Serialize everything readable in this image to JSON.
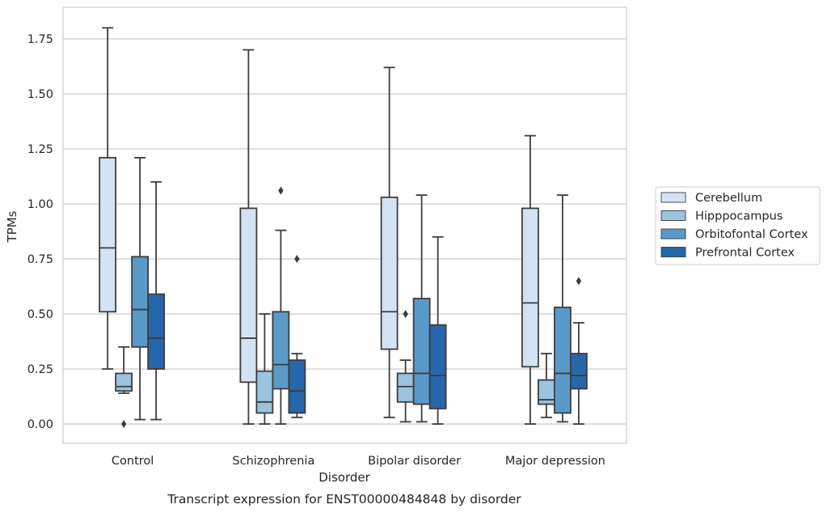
{
  "chart_data": {
    "type": "box",
    "caption": "Transcript expression for ENST00000484848 by disorder",
    "xlabel": "Disorder",
    "ylabel": "TPMs",
    "ylim": [
      -0.09,
      1.89
    ],
    "yticks": [
      "0.00",
      "0.25",
      "0.50",
      "0.75",
      "1.00",
      "1.25",
      "1.50",
      "1.75"
    ],
    "ytick_values": [
      0,
      0.25,
      0.5,
      0.75,
      1.0,
      1.25,
      1.5,
      1.75
    ],
    "grid": "horizontal",
    "legend_position": "right",
    "categories": [
      "Control",
      "Schizophrenia",
      "Bipolar disorder",
      "Major depression"
    ],
    "series": [
      {
        "name": "Cerebellum",
        "color": "#d4e3f3",
        "boxes": [
          {
            "whislo": 0.25,
            "q1": 0.51,
            "med": 0.8,
            "q3": 1.21,
            "whishi": 1.8,
            "fliers": []
          },
          {
            "whislo": 0.0,
            "q1": 0.19,
            "med": 0.39,
            "q3": 0.98,
            "whishi": 1.7,
            "fliers": []
          },
          {
            "whislo": 0.03,
            "q1": 0.34,
            "med": 0.51,
            "q3": 1.03,
            "whishi": 1.62,
            "fliers": []
          },
          {
            "whislo": 0.0,
            "q1": 0.26,
            "med": 0.55,
            "q3": 0.98,
            "whishi": 1.31,
            "fliers": []
          }
        ]
      },
      {
        "name": "Hipppocampus",
        "color": "#9ac4df",
        "boxes": [
          {
            "whislo": 0.14,
            "q1": 0.15,
            "med": 0.17,
            "q3": 0.23,
            "whishi": 0.35,
            "fliers": [
              0.0
            ]
          },
          {
            "whislo": 0.0,
            "q1": 0.05,
            "med": 0.1,
            "q3": 0.24,
            "whishi": 0.5,
            "fliers": []
          },
          {
            "whislo": 0.01,
            "q1": 0.1,
            "med": 0.17,
            "q3": 0.23,
            "whishi": 0.29,
            "fliers": [
              0.5
            ]
          },
          {
            "whislo": 0.03,
            "q1": 0.09,
            "med": 0.11,
            "q3": 0.2,
            "whishi": 0.32,
            "fliers": []
          }
        ]
      },
      {
        "name": "Orbitofontal Cortex",
        "color": "#5a9ac9",
        "boxes": [
          {
            "whislo": 0.02,
            "q1": 0.35,
            "med": 0.52,
            "q3": 0.76,
            "whishi": 1.21,
            "fliers": []
          },
          {
            "whislo": 0.0,
            "q1": 0.16,
            "med": 0.27,
            "q3": 0.51,
            "whishi": 0.88,
            "fliers": [
              1.06
            ]
          },
          {
            "whislo": 0.01,
            "q1": 0.09,
            "med": 0.23,
            "q3": 0.57,
            "whishi": 1.04,
            "fliers": []
          },
          {
            "whislo": 0.01,
            "q1": 0.05,
            "med": 0.23,
            "q3": 0.53,
            "whishi": 1.04,
            "fliers": []
          }
        ]
      },
      {
        "name": "Prefrontal Cortex",
        "color": "#2766ab",
        "boxes": [
          {
            "whislo": 0.02,
            "q1": 0.25,
            "med": 0.39,
            "q3": 0.59,
            "whishi": 1.1,
            "fliers": []
          },
          {
            "whislo": 0.03,
            "q1": 0.05,
            "med": 0.15,
            "q3": 0.29,
            "whishi": 0.32,
            "fliers": [
              0.75
            ]
          },
          {
            "whislo": 0.0,
            "q1": 0.07,
            "med": 0.22,
            "q3": 0.45,
            "whishi": 0.85,
            "fliers": []
          },
          {
            "whislo": 0.0,
            "q1": 0.16,
            "med": 0.22,
            "q3": 0.32,
            "whishi": 0.46,
            "fliers": [
              0.65
            ]
          }
        ]
      }
    ]
  }
}
